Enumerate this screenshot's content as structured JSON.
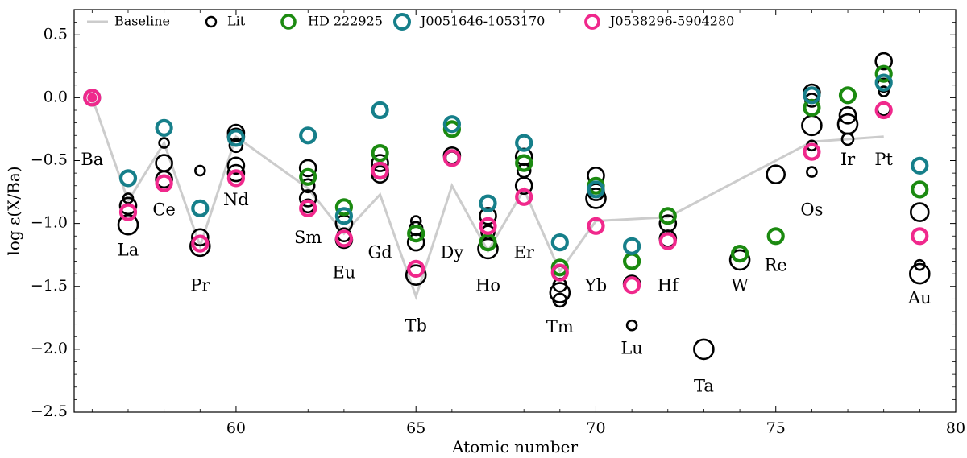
{
  "chart_data": {
    "type": "scatter",
    "xlabel": "Atomic number",
    "ylabel": "log ε(X/Ba)",
    "xlim": [
      55.5,
      80
    ],
    "ylim": [
      -2.5,
      0.7
    ],
    "xticks": [
      60,
      65,
      70,
      75,
      80
    ],
    "yticks": [
      -2.5,
      -2.0,
      -1.5,
      -1.0,
      -0.5,
      0.0,
      0.5
    ],
    "xtick_labels": [
      "60",
      "65",
      "70",
      "75",
      "80"
    ],
    "ytick_labels": [
      "−2.5",
      "−2.0",
      "−1.5",
      "−1.0",
      "−0.5",
      "0.0",
      "0.5"
    ],
    "grid": false,
    "legend_position": "top",
    "baseline": {
      "name": "Baseline",
      "color": "#cccccc",
      "points": [
        [
          56,
          0.0
        ],
        [
          57,
          -0.82
        ],
        [
          58,
          -0.36
        ],
        [
          59,
          -1.18
        ],
        [
          60,
          -0.31
        ],
        [
          62,
          -0.72
        ],
        [
          63,
          -1.08
        ],
        [
          64,
          -0.77
        ],
        [
          65,
          -1.58
        ],
        [
          66,
          -0.7
        ],
        [
          67,
          -1.22
        ],
        [
          68,
          -0.73
        ],
        [
          69,
          -1.38
        ],
        [
          70,
          -0.98
        ],
        [
          72,
          -0.95
        ],
        [
          76,
          -0.35
        ],
        [
          78,
          -0.31
        ]
      ]
    },
    "series": [
      {
        "name": "Lit",
        "color": "#000000",
        "points": [
          [
            57,
            -0.8,
            6
          ],
          [
            57,
            -0.86,
            10
          ],
          [
            57,
            -1.01,
            12
          ],
          [
            58,
            -0.36,
            6
          ],
          [
            58,
            -0.52,
            10
          ],
          [
            58,
            -0.65,
            10
          ],
          [
            59,
            -0.58,
            6
          ],
          [
            59,
            -1.11,
            10
          ],
          [
            59,
            -1.18,
            12
          ],
          [
            60,
            -0.28,
            10
          ],
          [
            60,
            -0.31,
            10
          ],
          [
            60,
            -0.38,
            8
          ],
          [
            60,
            -0.54,
            10
          ],
          [
            60,
            -0.6,
            10
          ],
          [
            62,
            -0.56,
            10
          ],
          [
            62,
            -0.7,
            8
          ],
          [
            62,
            -0.8,
            10
          ],
          [
            62,
            -0.86,
            8
          ],
          [
            63,
            -1.0,
            10
          ],
          [
            63,
            -1.09,
            8
          ],
          [
            63,
            -1.13,
            10
          ],
          [
            64,
            -0.52,
            10
          ],
          [
            64,
            -0.58,
            10
          ],
          [
            64,
            -0.61,
            10
          ],
          [
            65,
            -0.98,
            6
          ],
          [
            65,
            -1.04,
            8
          ],
          [
            65,
            -1.15,
            10
          ],
          [
            65,
            -1.41,
            12
          ],
          [
            66,
            -0.46,
            10
          ],
          [
            66,
            -0.48,
            8
          ],
          [
            67,
            -0.94,
            10
          ],
          [
            67,
            -1.07,
            8
          ],
          [
            67,
            -1.2,
            12
          ],
          [
            68,
            -0.47,
            10
          ],
          [
            68,
            -0.58,
            8
          ],
          [
            68,
            -0.7,
            10
          ],
          [
            69,
            -1.39,
            8
          ],
          [
            69,
            -1.49,
            8
          ],
          [
            69,
            -1.55,
            12
          ],
          [
            69,
            -1.61,
            8
          ],
          [
            70,
            -0.62,
            10
          ],
          [
            70,
            -0.75,
            10
          ],
          [
            70,
            -0.8,
            12
          ],
          [
            71,
            -1.48,
            10
          ],
          [
            71,
            -1.81,
            6
          ],
          [
            72,
            -1.0,
            10
          ],
          [
            72,
            -1.12,
            10
          ],
          [
            73,
            -2.0,
            12
          ],
          [
            74,
            -1.29,
            12
          ],
          [
            75,
            -0.61,
            11
          ],
          [
            76,
            0.04,
            10
          ],
          [
            76,
            -0.02,
            8
          ],
          [
            76,
            -0.22,
            12
          ],
          [
            76,
            -0.38,
            6
          ],
          [
            76,
            -0.59,
            6
          ],
          [
            77,
            -0.14,
            10
          ],
          [
            77,
            -0.21,
            12
          ],
          [
            77,
            -0.33,
            7
          ],
          [
            78,
            0.29,
            10
          ],
          [
            78,
            0.1,
            8
          ],
          [
            78,
            0.05,
            6
          ],
          [
            78,
            -0.09,
            8
          ],
          [
            79,
            -0.91,
            11
          ],
          [
            79,
            -1.33,
            6
          ],
          [
            79,
            -1.4,
            12
          ]
        ]
      },
      {
        "name": "HD 222925",
        "color": "#1b8a10",
        "points": [
          [
            62,
            -0.63
          ],
          [
            63,
            -0.87
          ],
          [
            64,
            -0.44
          ],
          [
            65,
            -1.08
          ],
          [
            66,
            -0.25
          ],
          [
            67,
            -1.15
          ],
          [
            68,
            -0.52
          ],
          [
            69,
            -1.35
          ],
          [
            70,
            -0.7
          ],
          [
            71,
            -1.3
          ],
          [
            72,
            -0.94
          ],
          [
            74,
            -1.24
          ],
          [
            75,
            -1.1
          ],
          [
            76,
            -0.08
          ],
          [
            77,
            0.02
          ],
          [
            78,
            0.19
          ],
          [
            79,
            -0.73
          ]
        ]
      },
      {
        "name": "J0051646-1053170",
        "color": "#167f8a",
        "points": [
          [
            56,
            0.0
          ],
          [
            57,
            -0.64
          ],
          [
            58,
            -0.24
          ],
          [
            59,
            -0.88
          ],
          [
            60,
            -0.32
          ],
          [
            62,
            -0.3
          ],
          [
            63,
            -0.94
          ],
          [
            64,
            -0.1
          ],
          [
            66,
            -0.21
          ],
          [
            67,
            -0.84
          ],
          [
            68,
            -0.36
          ],
          [
            69,
            -1.15
          ],
          [
            70,
            -0.73
          ],
          [
            71,
            -1.18
          ],
          [
            76,
            0.02
          ],
          [
            78,
            0.12
          ],
          [
            79,
            -0.54
          ]
        ]
      },
      {
        "name": "J0538296-5904280",
        "color": "#f0288c",
        "points": [
          [
            56,
            0.0
          ],
          [
            57,
            -0.91
          ],
          [
            58,
            -0.68
          ],
          [
            59,
            -1.16
          ],
          [
            60,
            -0.64
          ],
          [
            62,
            -0.88
          ],
          [
            63,
            -1.12
          ],
          [
            64,
            -0.58
          ],
          [
            65,
            -1.36
          ],
          [
            66,
            -0.48
          ],
          [
            67,
            -1.02
          ],
          [
            68,
            -0.79
          ],
          [
            69,
            -1.39
          ],
          [
            70,
            -1.02
          ],
          [
            71,
            -1.49
          ],
          [
            72,
            -1.14
          ],
          [
            76,
            -0.43
          ],
          [
            78,
            -0.1
          ],
          [
            79,
            -1.1
          ]
        ]
      }
    ],
    "annotations": [
      {
        "text": "Ba",
        "x": 56,
        "y": -0.5
      },
      {
        "text": "La",
        "x": 57,
        "y": -1.22
      },
      {
        "text": "Ce",
        "x": 58,
        "y": -0.9
      },
      {
        "text": "Pr",
        "x": 59,
        "y": -1.5
      },
      {
        "text": "Nd",
        "x": 60,
        "y": -0.82
      },
      {
        "text": "Sm",
        "x": 62,
        "y": -1.12
      },
      {
        "text": "Eu",
        "x": 63,
        "y": -1.4
      },
      {
        "text": "Gd",
        "x": 64,
        "y": -1.24
      },
      {
        "text": "Tb",
        "x": 65,
        "y": -1.82
      },
      {
        "text": "Dy",
        "x": 66,
        "y": -1.24
      },
      {
        "text": "Ho",
        "x": 67,
        "y": -1.5
      },
      {
        "text": "Er",
        "x": 68,
        "y": -1.24
      },
      {
        "text": "Tm",
        "x": 69,
        "y": -1.83
      },
      {
        "text": "Yb",
        "x": 70,
        "y": -1.5
      },
      {
        "text": "Lu",
        "x": 71,
        "y": -2.0
      },
      {
        "text": "Hf",
        "x": 72,
        "y": -1.5
      },
      {
        "text": "Ta",
        "x": 73,
        "y": -2.3
      },
      {
        "text": "W",
        "x": 74,
        "y": -1.5
      },
      {
        "text": "Re",
        "x": 75,
        "y": -1.34
      },
      {
        "text": "Os",
        "x": 76,
        "y": -0.9
      },
      {
        "text": "Ir",
        "x": 77,
        "y": -0.5
      },
      {
        "text": "Pt",
        "x": 78,
        "y": -0.5
      },
      {
        "text": "Au",
        "x": 79,
        "y": -1.6
      }
    ]
  }
}
